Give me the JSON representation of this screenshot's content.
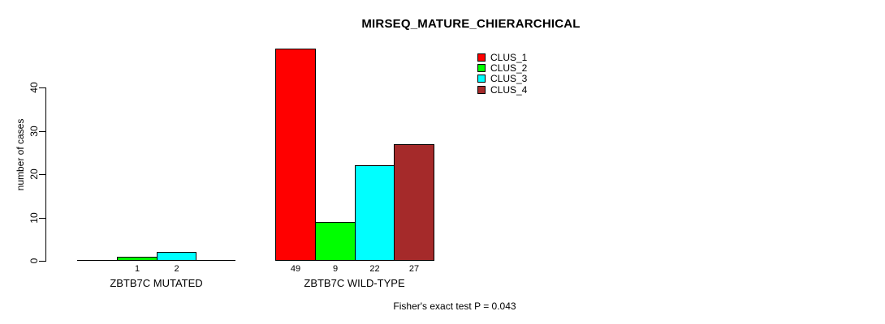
{
  "page": {
    "background": "#FFFFFF"
  },
  "chart_data": {
    "type": "bar",
    "title": "MIRSEQ_MATURE_CHIERARCHICAL",
    "xlabel": "",
    "ylabel": "number of cases",
    "ylim": [
      0,
      40
    ],
    "yticks": [
      0,
      10,
      20,
      30,
      40
    ],
    "grid": false,
    "legend_position": "top-right",
    "categories": [
      "ZBTB7C MUTATED",
      "ZBTB7C WILD-TYPE"
    ],
    "series": [
      {
        "name": "CLUS_1",
        "color": "#FF0000",
        "values": [
          0,
          49
        ]
      },
      {
        "name": "CLUS_2",
        "color": "#00FF00",
        "values": [
          1,
          9
        ]
      },
      {
        "name": "CLUS_3",
        "color": "#00FFFF",
        "values": [
          2,
          22
        ]
      },
      {
        "name": "CLUS_4",
        "color": "#A52A2A",
        "values": [
          0,
          27
        ]
      }
    ],
    "bar_value_labels_shown": [
      [
        "",
        "1",
        "2",
        ""
      ],
      [
        "49",
        "9",
        "22",
        "27"
      ]
    ],
    "annotation": "Fisher's exact test P = 0.043"
  }
}
